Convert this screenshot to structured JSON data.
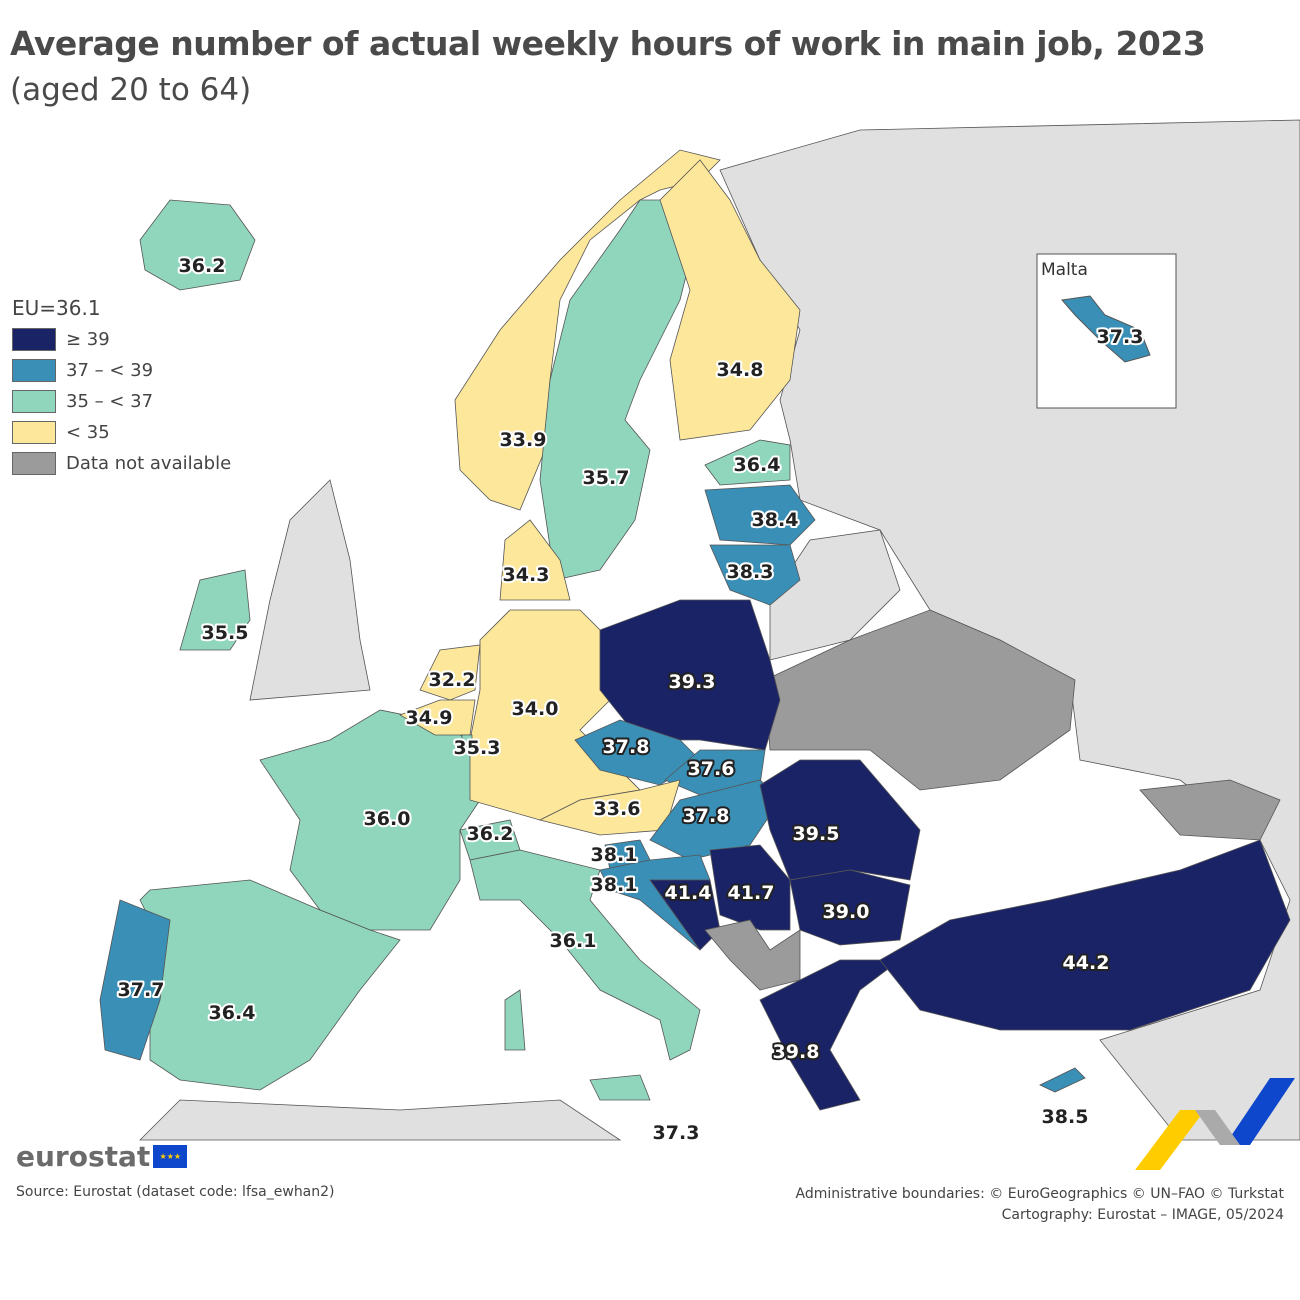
{
  "title": "Average number of actual weekly hours of work in main job, 2023",
  "subtitle": "(aged 20 to 64)",
  "legend": {
    "eu_label": "EU=36.1",
    "classes": [
      {
        "label": "≥ 39",
        "color": "#1a2366"
      },
      {
        "label": "37 – < 39",
        "color": "#3a8fb7"
      },
      {
        "label": "35 – < 37",
        "color": "#8fd6bc"
      },
      {
        "label": "< 35",
        "color": "#fde79a"
      },
      {
        "label": "Data not available",
        "color": "#9b9b9b"
      }
    ]
  },
  "inset": {
    "title": "Malta",
    "value": "37.3"
  },
  "chart_data": {
    "type": "choropleth",
    "values": {
      "iceland": "36.2",
      "norway": "33.9",
      "sweden": "35.7",
      "finland": "34.8",
      "estonia": "36.4",
      "latvia": "38.4",
      "lithuania": "38.3",
      "denmark": "34.3",
      "ireland": "35.5",
      "netherlands": "32.2",
      "belgium": "34.9",
      "luxembourg": "35.3",
      "germany": "34.0",
      "poland": "39.3",
      "czechia": "37.8",
      "slovakia": "37.6",
      "austria": "33.6",
      "hungary": "37.8",
      "slovenia": "38.1",
      "croatia": "38.1",
      "bosnia": "41.4",
      "serbia": "41.7",
      "romania": "39.5",
      "bulgaria": "39.0",
      "switzerland": "36.2",
      "france": "36.0",
      "italy": "36.1",
      "malta": "37.3",
      "portugal": "37.7",
      "spain": "36.4",
      "greece": "39.8",
      "turkey": "44.2",
      "cyprus": "38.5"
    }
  },
  "logo": "eurostat",
  "source": "Source: Eurostat (dataset code: lfsa_ewhan2)",
  "credits": [
    "Administrative boundaries: © EuroGeographics © UN–FAO © Turkstat",
    "Cartography: Eurostat – IMAGE, 05/2024"
  ]
}
